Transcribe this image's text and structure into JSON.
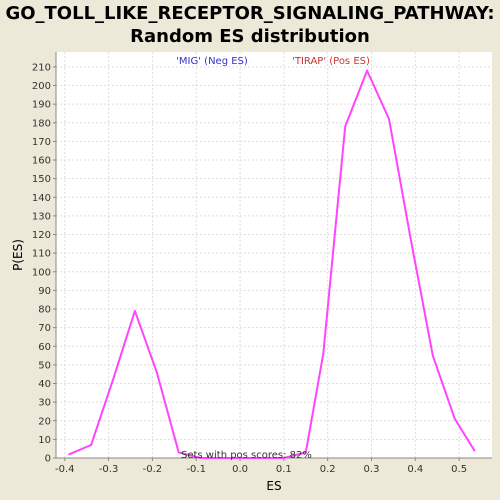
{
  "chart_data": {
    "type": "line",
    "title_line1": "GO_TOLL_LIKE_RECEPTOR_SIGNALING_PATHWAY:",
    "title_line2": "Random ES distribution",
    "xlabel": "ES",
    "ylabel": "P(ES)",
    "xlim": [
      -0.42,
      0.575
    ],
    "ylim": [
      0,
      218
    ],
    "x_ticks": [
      -0.4,
      -0.3,
      -0.2,
      -0.1,
      0.0,
      0.1,
      0.2,
      0.3,
      0.4,
      0.5
    ],
    "x_tick_labels": [
      "-0.4",
      "-0.3",
      "-0.2",
      "-0.1",
      "0.0",
      "0.1",
      "0.2",
      "0.3",
      "0.4",
      "0.5"
    ],
    "y_ticks": [
      0,
      10,
      20,
      30,
      40,
      50,
      60,
      70,
      80,
      90,
      100,
      110,
      120,
      130,
      140,
      150,
      160,
      170,
      180,
      190,
      200,
      210
    ],
    "grid": true,
    "line_color": "#FF44FF",
    "series": [
      {
        "x": [
          -0.39,
          -0.34,
          -0.29,
          -0.24,
          -0.19,
          -0.14,
          -0.09,
          -0.04,
          0.01,
          0.06,
          0.1,
          0.15,
          0.19,
          0.24,
          0.29,
          0.34,
          0.39,
          0.44,
          0.49,
          0.535
        ],
        "y": [
          2,
          7,
          42,
          79,
          46,
          3,
          0,
          0,
          0,
          0,
          0,
          3,
          56,
          178,
          208,
          182,
          117,
          55,
          21,
          4
        ]
      }
    ],
    "legend_neg": {
      "text": "'MIG' (Neg ES)",
      "color": "#3333CC"
    },
    "legend_pos": {
      "text": "'TIRAP' (Pos ES)",
      "color": "#CC3333"
    },
    "annotation": "Sets with pos scores: 82%"
  }
}
